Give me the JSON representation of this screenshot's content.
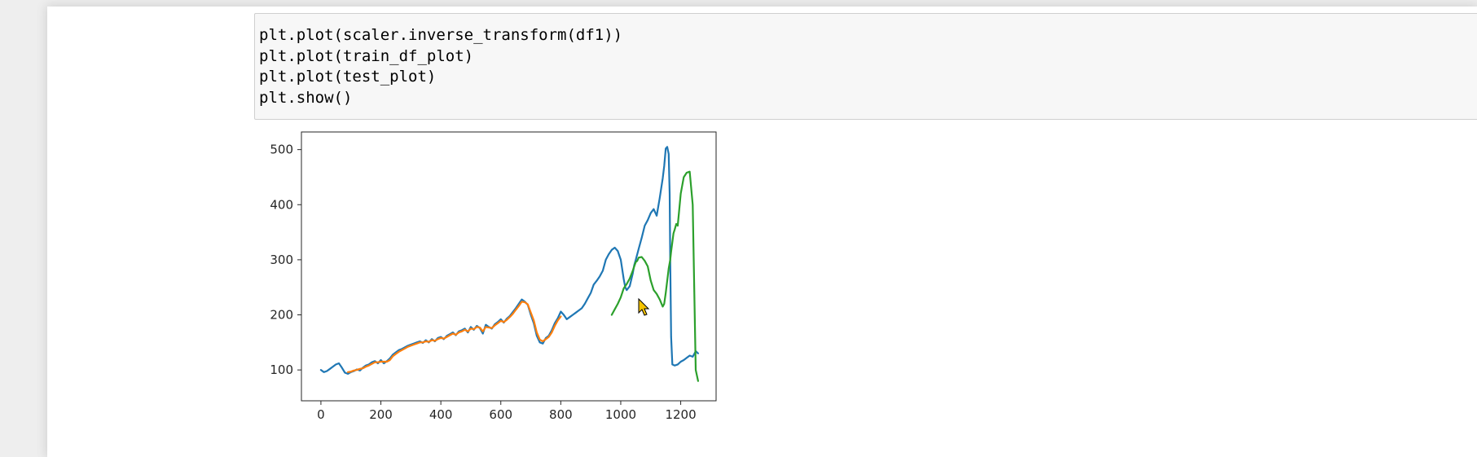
{
  "code_cell": {
    "lines": [
      "plt.plot(scaler.inverse_transform(df1))",
      "plt.plot(train_df_plot)",
      "plt.plot(test_plot)",
      "plt.show()"
    ]
  },
  "colors": {
    "page_bg": "#eeeeee",
    "notebook_bg": "#ffffff",
    "cell_bg": "#f7f7f7",
    "series_1": "#1f77b4",
    "series_2": "#ff7f0e",
    "series_3": "#2ca02c",
    "cursor": "#f5c400"
  },
  "chart_data": {
    "type": "line",
    "title": "",
    "xlabel": "",
    "ylabel": "",
    "xlim": [
      -65,
      1318
    ],
    "ylim": [
      44,
      532
    ],
    "xticks": [
      0,
      200,
      400,
      600,
      800,
      1000,
      1200
    ],
    "yticks": [
      100,
      200,
      300,
      400,
      500
    ],
    "xtick_labels": [
      "0",
      "200",
      "400",
      "600",
      "800",
      "1000",
      "1200"
    ],
    "ytick_labels": [
      "100",
      "200",
      "300",
      "400",
      "500"
    ],
    "grid": false,
    "legend": "none",
    "series": [
      {
        "x": [
          0,
          10,
          20,
          30,
          40,
          50,
          60,
          70,
          80,
          90,
          100,
          110,
          120,
          130,
          140,
          150,
          160,
          170,
          180,
          190,
          200,
          210,
          220,
          230,
          240,
          250,
          260,
          270,
          280,
          290,
          300,
          310,
          320,
          330,
          340,
          350,
          360,
          370,
          380,
          390,
          400,
          410,
          420,
          430,
          440,
          450,
          460,
          470,
          480,
          490,
          500,
          510,
          520,
          530,
          540,
          550,
          560,
          570,
          580,
          590,
          600,
          610,
          620,
          630,
          640,
          650,
          660,
          670,
          680,
          690,
          700,
          710,
          720,
          730,
          740,
          750,
          760,
          770,
          780,
          790,
          800,
          810,
          820,
          830,
          840,
          850,
          860,
          870,
          880,
          890,
          900,
          910,
          920,
          930,
          940,
          950,
          960,
          970,
          980,
          990,
          1000,
          1010,
          1015,
          1020,
          1030,
          1040,
          1045,
          1050,
          1060,
          1070,
          1080,
          1090,
          1100,
          1110,
          1120,
          1130,
          1140,
          1145,
          1150,
          1155,
          1160,
          1163,
          1165,
          1168,
          1172,
          1180,
          1190,
          1200,
          1210,
          1220,
          1230,
          1240,
          1250,
          1258
        ],
        "values": [
          100,
          96,
          98,
          102,
          106,
          110,
          112,
          104,
          95,
          93,
          96,
          98,
          101,
          99,
          104,
          108,
          110,
          114,
          116,
          112,
          118,
          112,
          116,
          121,
          128,
          132,
          136,
          138,
          141,
          144,
          146,
          148,
          150,
          152,
          149,
          154,
          150,
          156,
          152,
          158,
          160,
          156,
          162,
          165,
          168,
          163,
          170,
          172,
          175,
          168,
          178,
          173,
          180,
          176,
          166,
          182,
          178,
          175,
          183,
          187,
          192,
          186,
          193,
          198,
          205,
          212,
          220,
          228,
          224,
          218,
          200,
          185,
          162,
          150,
          148,
          158,
          162,
          172,
          185,
          194,
          206,
          200,
          192,
          196,
          200,
          204,
          208,
          212,
          220,
          230,
          240,
          255,
          262,
          270,
          280,
          300,
          310,
          318,
          322,
          316,
          300,
          265,
          250,
          245,
          252,
          275,
          290,
          300,
          320,
          340,
          362,
          372,
          385,
          392,
          380,
          412,
          448,
          470,
          502,
          505,
          492,
          420,
          300,
          160,
          110,
          108,
          110,
          115,
          118,
          122,
          126,
          124,
          134,
          130
        ]
      },
      {
        "x": [
          90,
          100,
          110,
          120,
          130,
          140,
          150,
          160,
          170,
          180,
          190,
          200,
          210,
          220,
          230,
          240,
          250,
          260,
          270,
          280,
          290,
          300,
          310,
          320,
          330,
          340,
          350,
          360,
          370,
          380,
          390,
          400,
          410,
          420,
          430,
          440,
          450,
          460,
          470,
          480,
          490,
          500,
          510,
          520,
          530,
          540,
          550,
          560,
          570,
          580,
          590,
          600,
          610,
          620,
          630,
          640,
          650,
          660,
          670,
          680,
          690,
          700,
          710,
          720,
          730,
          740,
          750,
          760,
          770,
          780,
          790,
          800
        ],
        "values": [
          96,
          97,
          99,
          100,
          102,
          103,
          106,
          108,
          111,
          114,
          114,
          115,
          115,
          115,
          118,
          125,
          129,
          133,
          136,
          139,
          142,
          144,
          146,
          148,
          150,
          150,
          152,
          151,
          154,
          153,
          156,
          158,
          157,
          160,
          163,
          166,
          164,
          168,
          170,
          173,
          170,
          175,
          174,
          178,
          177,
          170,
          178,
          177,
          176,
          181,
          185,
          189,
          187,
          191,
          196,
          202,
          209,
          216,
          224,
          223,
          219,
          204,
          190,
          168,
          155,
          152,
          156,
          160,
          168,
          180,
          190,
          197
        ]
      },
      {
        "x": [
          970,
          980,
          990,
          1000,
          1010,
          1020,
          1030,
          1040,
          1045,
          1050,
          1055,
          1060,
          1070,
          1080,
          1090,
          1100,
          1110,
          1120,
          1130,
          1140,
          1145,
          1150,
          1155,
          1160,
          1165,
          1168,
          1172,
          1176,
          1180,
          1185,
          1190,
          1195,
          1200,
          1210,
          1220,
          1230,
          1240,
          1250,
          1258
        ],
        "values": [
          200,
          210,
          220,
          232,
          248,
          256,
          266,
          280,
          288,
          296,
          298,
          304,
          305,
          298,
          288,
          262,
          245,
          238,
          228,
          215,
          220,
          240,
          262,
          284,
          300,
          315,
          332,
          348,
          355,
          365,
          362,
          390,
          420,
          450,
          458,
          460,
          400,
          100,
          80
        ]
      }
    ]
  }
}
